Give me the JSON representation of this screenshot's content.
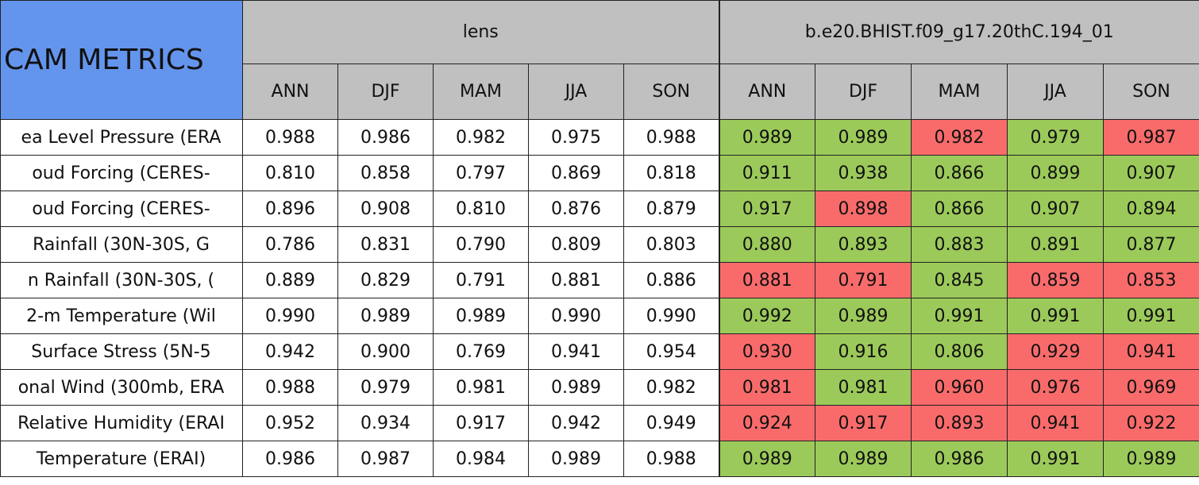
{
  "header": {
    "title": "CAM METRICS",
    "groups": [
      {
        "name": "lens",
        "seasons": [
          "ANN",
          "DJF",
          "MAM",
          "JJA",
          "SON"
        ]
      },
      {
        "name": "b.e20.BHIST.f09_g17.20thC.194_01",
        "seasons": [
          "ANN",
          "DJF",
          "MAM",
          "JJA",
          "SON"
        ]
      }
    ]
  },
  "table": {
    "rows": [
      {
        "label": "ea Level Pressure (ERA",
        "cells": [
          {
            "text": "0.988",
            "color": "#ffffff"
          },
          {
            "text": "0.986",
            "color": "#ffffff"
          },
          {
            "text": "0.982",
            "color": "#ffffff"
          },
          {
            "text": "0.975",
            "color": "#ffffff"
          },
          {
            "text": "0.988",
            "color": "#ffffff"
          },
          {
            "text": "0.989",
            "color": "#9cca5a"
          },
          {
            "text": "0.989",
            "color": "#9cca5a"
          },
          {
            "text": "0.982",
            "color": "#f96b6b"
          },
          {
            "text": "0.979",
            "color": "#9cca5a"
          },
          {
            "text": "0.987",
            "color": "#f96b6b"
          }
        ]
      },
      {
        "label": "oud Forcing (CERES-",
        "cells": [
          {
            "text": "0.810",
            "color": "#ffffff"
          },
          {
            "text": "0.858",
            "color": "#ffffff"
          },
          {
            "text": "0.797",
            "color": "#ffffff"
          },
          {
            "text": "0.869",
            "color": "#ffffff"
          },
          {
            "text": "0.818",
            "color": "#ffffff"
          },
          {
            "text": "0.911",
            "color": "#9cca5a"
          },
          {
            "text": "0.938",
            "color": "#9cca5a"
          },
          {
            "text": "0.866",
            "color": "#9cca5a"
          },
          {
            "text": "0.899",
            "color": "#9cca5a"
          },
          {
            "text": "0.907",
            "color": "#9cca5a"
          }
        ]
      },
      {
        "label": "oud Forcing (CERES-",
        "cells": [
          {
            "text": "0.896",
            "color": "#ffffff"
          },
          {
            "text": "0.908",
            "color": "#ffffff"
          },
          {
            "text": "0.810",
            "color": "#ffffff"
          },
          {
            "text": "0.876",
            "color": "#ffffff"
          },
          {
            "text": "0.879",
            "color": "#ffffff"
          },
          {
            "text": "0.917",
            "color": "#9cca5a"
          },
          {
            "text": "0.898",
            "color": "#f96b6b"
          },
          {
            "text": "0.866",
            "color": "#9cca5a"
          },
          {
            "text": "0.907",
            "color": "#9cca5a"
          },
          {
            "text": "0.894",
            "color": "#9cca5a"
          }
        ]
      },
      {
        "label": "Rainfall (30N-30S, G",
        "cells": [
          {
            "text": "0.786",
            "color": "#ffffff"
          },
          {
            "text": "0.831",
            "color": "#ffffff"
          },
          {
            "text": "0.790",
            "color": "#ffffff"
          },
          {
            "text": "0.809",
            "color": "#ffffff"
          },
          {
            "text": "0.803",
            "color": "#ffffff"
          },
          {
            "text": "0.880",
            "color": "#9cca5a"
          },
          {
            "text": "0.893",
            "color": "#9cca5a"
          },
          {
            "text": "0.883",
            "color": "#9cca5a"
          },
          {
            "text": "0.891",
            "color": "#9cca5a"
          },
          {
            "text": "0.877",
            "color": "#9cca5a"
          }
        ]
      },
      {
        "label": "n Rainfall (30N-30S, (",
        "cells": [
          {
            "text": "0.889",
            "color": "#ffffff"
          },
          {
            "text": "0.829",
            "color": "#ffffff"
          },
          {
            "text": "0.791",
            "color": "#ffffff"
          },
          {
            "text": "0.881",
            "color": "#ffffff"
          },
          {
            "text": "0.886",
            "color": "#ffffff"
          },
          {
            "text": "0.881",
            "color": "#f96b6b"
          },
          {
            "text": "0.791",
            "color": "#f96b6b"
          },
          {
            "text": "0.845",
            "color": "#9cca5a"
          },
          {
            "text": "0.859",
            "color": "#f96b6b"
          },
          {
            "text": "0.853",
            "color": "#f96b6b"
          }
        ]
      },
      {
        "label": "2-m Temperature (Wil",
        "cells": [
          {
            "text": "0.990",
            "color": "#ffffff"
          },
          {
            "text": "0.989",
            "color": "#ffffff"
          },
          {
            "text": "0.989",
            "color": "#ffffff"
          },
          {
            "text": "0.990",
            "color": "#ffffff"
          },
          {
            "text": "0.990",
            "color": "#ffffff"
          },
          {
            "text": "0.992",
            "color": "#9cca5a"
          },
          {
            "text": "0.989",
            "color": "#9cca5a"
          },
          {
            "text": "0.991",
            "color": "#9cca5a"
          },
          {
            "text": "0.991",
            "color": "#9cca5a"
          },
          {
            "text": "0.991",
            "color": "#9cca5a"
          }
        ]
      },
      {
        "label": "Surface Stress (5N-5",
        "cells": [
          {
            "text": "0.942",
            "color": "#ffffff"
          },
          {
            "text": "0.900",
            "color": "#ffffff"
          },
          {
            "text": "0.769",
            "color": "#ffffff"
          },
          {
            "text": "0.941",
            "color": "#ffffff"
          },
          {
            "text": "0.954",
            "color": "#ffffff"
          },
          {
            "text": "0.930",
            "color": "#f96b6b"
          },
          {
            "text": "0.916",
            "color": "#9cca5a"
          },
          {
            "text": "0.806",
            "color": "#9cca5a"
          },
          {
            "text": "0.929",
            "color": "#f96b6b"
          },
          {
            "text": "0.941",
            "color": "#f96b6b"
          }
        ]
      },
      {
        "label": "onal Wind (300mb, ERA",
        "cells": [
          {
            "text": "0.988",
            "color": "#ffffff"
          },
          {
            "text": "0.979",
            "color": "#ffffff"
          },
          {
            "text": "0.981",
            "color": "#ffffff"
          },
          {
            "text": "0.989",
            "color": "#ffffff"
          },
          {
            "text": "0.982",
            "color": "#ffffff"
          },
          {
            "text": "0.981",
            "color": "#f96b6b"
          },
          {
            "text": "0.981",
            "color": "#9cca5a"
          },
          {
            "text": "0.960",
            "color": "#f96b6b"
          },
          {
            "text": "0.976",
            "color": "#f96b6b"
          },
          {
            "text": "0.969",
            "color": "#f96b6b"
          }
        ]
      },
      {
        "label": "Relative Humidity (ERAI",
        "cells": [
          {
            "text": "0.952",
            "color": "#ffffff"
          },
          {
            "text": "0.934",
            "color": "#ffffff"
          },
          {
            "text": "0.917",
            "color": "#ffffff"
          },
          {
            "text": "0.942",
            "color": "#ffffff"
          },
          {
            "text": "0.949",
            "color": "#ffffff"
          },
          {
            "text": "0.924",
            "color": "#f96b6b"
          },
          {
            "text": "0.917",
            "color": "#f96b6b"
          },
          {
            "text": "0.893",
            "color": "#f96b6b"
          },
          {
            "text": "0.941",
            "color": "#f96b6b"
          },
          {
            "text": "0.922",
            "color": "#f96b6b"
          }
        ]
      },
      {
        "label": "Temperature (ERAI)",
        "cells": [
          {
            "text": "0.986",
            "color": "#ffffff"
          },
          {
            "text": "0.987",
            "color": "#ffffff"
          },
          {
            "text": "0.984",
            "color": "#ffffff"
          },
          {
            "text": "0.989",
            "color": "#ffffff"
          },
          {
            "text": "0.988",
            "color": "#ffffff"
          },
          {
            "text": "0.989",
            "color": "#9cca5a"
          },
          {
            "text": "0.989",
            "color": "#9cca5a"
          },
          {
            "text": "0.986",
            "color": "#9cca5a"
          },
          {
            "text": "0.991",
            "color": "#9cca5a"
          },
          {
            "text": "0.989",
            "color": "#9cca5a"
          }
        ]
      }
    ]
  }
}
